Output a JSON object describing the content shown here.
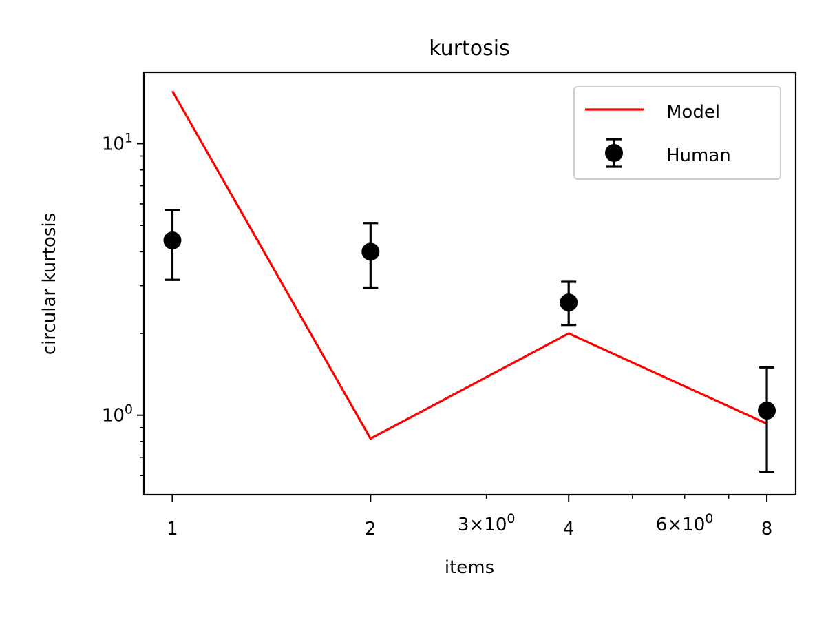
{
  "chart_data": {
    "type": "line",
    "title": "kurtosis",
    "xlabel": "items",
    "ylabel": "circular kurtosis",
    "xscale": "log",
    "yscale": "log",
    "xlim": [
      0.905,
      8.85
    ],
    "ylim": [
      0.51,
      18.3
    ],
    "x_major_ticks": [
      {
        "value": 1,
        "label": "1"
      },
      {
        "value": 2,
        "label": "2"
      },
      {
        "value": 4,
        "label": "4"
      },
      {
        "value": 8,
        "label": "8"
      }
    ],
    "x_minor_ticks": [
      {
        "value": 3,
        "base": "3",
        "exp": "0"
      },
      {
        "value": 5,
        "base": "",
        "exp": ""
      },
      {
        "value": 6,
        "base": "6",
        "exp": "0"
      },
      {
        "value": 7,
        "base": "",
        "exp": ""
      }
    ],
    "y_major_ticks": [
      {
        "value": 1,
        "base": "10",
        "exp": "0"
      },
      {
        "value": 10,
        "base": "10",
        "exp": "1"
      }
    ],
    "y_minor_ticks": [
      0.6,
      0.7,
      0.8,
      0.9,
      2,
      3,
      4,
      5,
      6,
      7,
      8,
      9
    ],
    "legend_position": "top-right",
    "grid": false,
    "series": [
      {
        "name": "Model",
        "kind": "line",
        "color": "#ff0000",
        "x": [
          1,
          2,
          4,
          8
        ],
        "y": [
          15.6,
          0.82,
          2.0,
          0.93
        ]
      },
      {
        "name": "Human",
        "kind": "errorbar",
        "color": "#000000",
        "x": [
          1,
          2,
          4,
          8
        ],
        "y": [
          4.4,
          4.0,
          2.6,
          1.04
        ],
        "y_low": [
          3.15,
          2.95,
          2.15,
          0.62
        ],
        "y_high": [
          5.7,
          5.1,
          3.1,
          1.5
        ]
      }
    ]
  }
}
